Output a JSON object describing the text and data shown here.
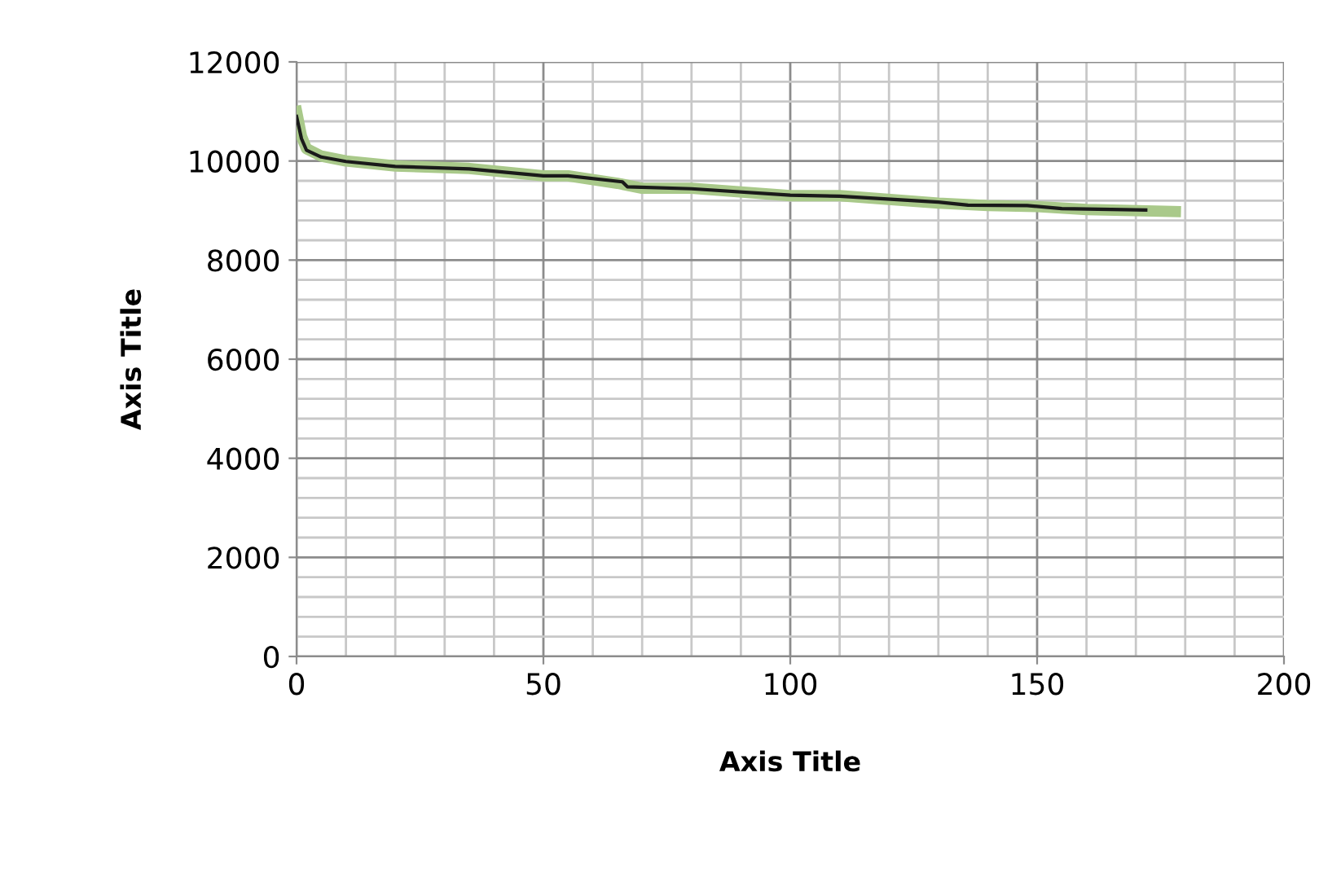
{
  "chart_data": {
    "type": "line",
    "xlabel": "Axis Title",
    "ylabel": "Axis Title",
    "xlim": [
      0,
      200
    ],
    "ylim": [
      0,
      12000
    ],
    "xticks": [
      0,
      50,
      100,
      150,
      200
    ],
    "yticks": [
      0,
      2000,
      4000,
      6000,
      8000,
      10000,
      12000
    ],
    "grid": true,
    "legend": false,
    "marker": "none",
    "line_style": "solid",
    "series": [
      {
        "color": "#a9c98a",
        "x": [
          0,
          1,
          2,
          5,
          10,
          20,
          35,
          50,
          55,
          65,
          70,
          80,
          100,
          110,
          130,
          140,
          150,
          160,
          178
        ],
        "values": [
          11000,
          10500,
          10250,
          10100,
          10000,
          9900,
          9850,
          9700,
          9700,
          9550,
          9450,
          9450,
          9300,
          9300,
          9150,
          9100,
          9080,
          9020,
          8980
        ]
      },
      {
        "color": "#1a1a1a",
        "x": [
          0,
          1,
          2,
          5,
          10,
          20,
          35,
          50,
          55,
          66,
          67,
          80,
          100,
          110,
          130,
          136,
          148,
          155,
          172
        ],
        "values": [
          10900,
          10450,
          10220,
          10080,
          9990,
          9890,
          9840,
          9700,
          9700,
          9580,
          9480,
          9440,
          9310,
          9290,
          9170,
          9110,
          9100,
          9040,
          9010
        ]
      }
    ]
  }
}
